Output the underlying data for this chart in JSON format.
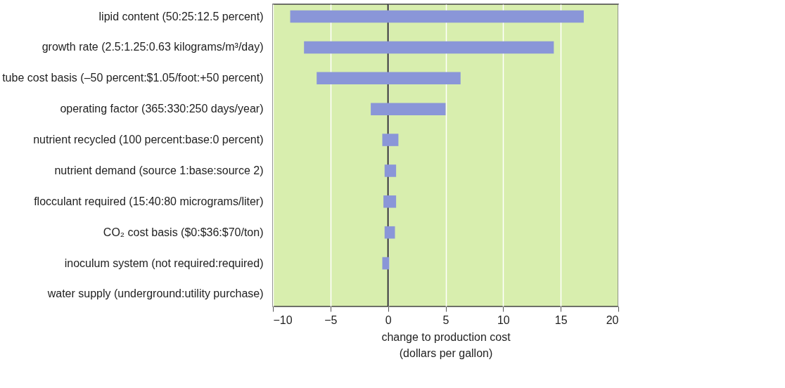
{
  "chart_data": {
    "type": "bar",
    "orientation": "horizontal",
    "xlabel": "change to production cost\n(dollars per gallon)",
    "categories": [
      "lipid content (50:25:12.5 percent)",
      "growth rate (2.5:1.25:0.63 kilograms/m³/day)",
      "tube cost basis (–50 percent:$1.05/foot:+50 percent)",
      "operating factor (365:330:250 days/year)",
      "nutrient recycled (100 percent:base:0 percent)",
      "nutrient demand (source 1:base:source 2)",
      "flocculant required (15:40:80 micrograms/liter)",
      "CO₂ cost basis ($0:$36:$70/ton)",
      "inoculum system (not required:required)",
      "water supply (underground:utility purchase)"
    ],
    "base": [
      -8.5,
      -7.3,
      -6.2,
      -1.5,
      -0.5,
      -0.3,
      -0.4,
      -0.3,
      -0.5,
      null
    ],
    "values": [
      25.5,
      21.7,
      12.5,
      6.5,
      1.4,
      1.0,
      1.1,
      0.9,
      0.6,
      null
    ],
    "color": "#8a96d8",
    "xlim": [
      -10,
      20
    ],
    "xticks": [
      -10,
      -5,
      0,
      5,
      10,
      15,
      20
    ],
    "grid": "x",
    "ref_lines": [
      {
        "axis": "x",
        "value": 0,
        "color": "#333333"
      }
    ]
  }
}
